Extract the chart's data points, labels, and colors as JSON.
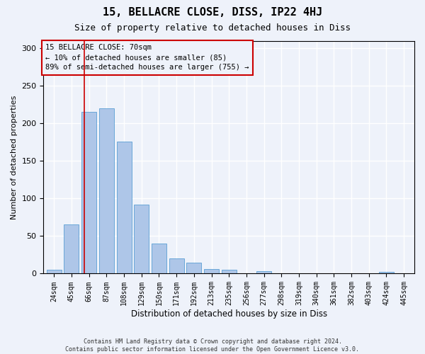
{
  "title": "15, BELLACRE CLOSE, DISS, IP22 4HJ",
  "subtitle": "Size of property relative to detached houses in Diss",
  "xlabel": "Distribution of detached houses by size in Diss",
  "ylabel": "Number of detached properties",
  "footer_line1": "Contains HM Land Registry data © Crown copyright and database right 2024.",
  "footer_line2": "Contains public sector information licensed under the Open Government Licence v3.0.",
  "categories": [
    "24sqm",
    "45sqm",
    "66sqm",
    "87sqm",
    "108sqm",
    "129sqm",
    "150sqm",
    "171sqm",
    "192sqm",
    "213sqm",
    "235sqm",
    "256sqm",
    "277sqm",
    "298sqm",
    "319sqm",
    "340sqm",
    "361sqm",
    "382sqm",
    "403sqm",
    "424sqm",
    "445sqm"
  ],
  "values": [
    5,
    65,
    215,
    220,
    176,
    92,
    40,
    20,
    15,
    6,
    5,
    0,
    3,
    0,
    0,
    0,
    0,
    0,
    0,
    2,
    0
  ],
  "bar_color": "#aec6e8",
  "bar_edge_color": "#5a9fd4",
  "bar_edge_width": 0.6,
  "ylim": [
    0,
    310
  ],
  "yticks": [
    0,
    50,
    100,
    150,
    200,
    250,
    300
  ],
  "annotation_line1": "15 BELLACRE CLOSE: 70sqm",
  "annotation_line2": "← 10% of detached houses are smaller (85)",
  "annotation_line3": "89% of semi-detached houses are larger (755) →",
  "red_line_x": 1.72,
  "red_line_color": "#cc0000",
  "bg_color": "#eef2fa",
  "plot_bg_color": "#eef2fa",
  "grid_color": "#ffffff",
  "title_fontsize": 11,
  "subtitle_fontsize": 9,
  "tick_fontsize": 7,
  "ylabel_fontsize": 8,
  "xlabel_fontsize": 8.5,
  "annotation_fontsize": 7.5,
  "footer_fontsize": 6
}
